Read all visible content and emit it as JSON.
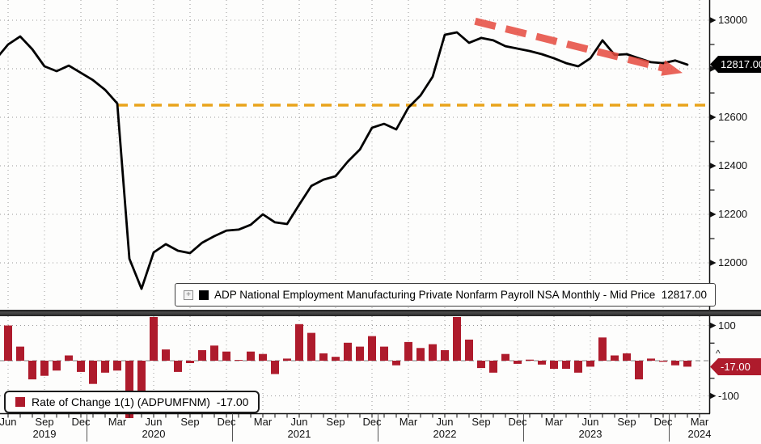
{
  "window": {
    "background": "#fdfdfc",
    "accent_red": "#ae1b2c",
    "accent_orange": "#e9a41b",
    "arrow_red": "#e64a3e"
  },
  "top_legend": {
    "expand_icon": "+",
    "swatch_color": "#000000",
    "label": "ADP National Employment Manufacturing Private Nonfarm Payroll NSA Monthly - Mid Price  12817.00"
  },
  "bottom_legend": {
    "swatch_color": "#ae1b2c",
    "label": "Rate of Change 1(1) (ADPUMFNM)  -17.00"
  },
  "badges": {
    "last_price": "12817.00",
    "last_price_bg": "#000000",
    "last_roc": "-17.00",
    "last_roc_bg": "#ae1b2c",
    "zero_caret": "^"
  },
  "price_axis": {
    "tick_labels": [
      "13000",
      "12600",
      "12400",
      "12200",
      "12000"
    ],
    "tick_values": [
      13000,
      12600,
      12400,
      12200,
      12000
    ],
    "grid_values": [
      13000,
      12800,
      12600,
      12400,
      12200,
      12000
    ],
    "minor_tick_values": [
      12900,
      12700,
      12500,
      12300,
      12100
    ]
  },
  "roc_axis": {
    "tick_labels": [
      "100",
      "-100"
    ],
    "tick_values": [
      100,
      -100
    ],
    "minor_tick_values": [
      50,
      -50
    ]
  },
  "x_axis": {
    "month_tick_labels": [
      "Jun",
      "Sep",
      "Dec",
      "Mar",
      "Jun",
      "Sep",
      "Dec",
      "Mar",
      "Jun",
      "Sep",
      "Dec",
      "Mar",
      "Jun",
      "Sep",
      "Dec",
      "Mar",
      "Jun",
      "Sep",
      "Dec",
      "Mar"
    ],
    "year_labels": [
      "2019",
      "2020",
      "2021",
      "2022",
      "2023",
      "2024"
    ]
  },
  "chart_data": [
    {
      "type": "line",
      "legend": "ADP National Employment Manufacturing Private Nonfarm Payroll NSA Monthly - Mid Price 12817.00",
      "line_color": "#000000",
      "x": [
        "2019-05",
        "2019-06",
        "2019-07",
        "2019-08",
        "2019-09",
        "2019-10",
        "2019-11",
        "2019-12",
        "2020-01",
        "2020-02",
        "2020-03",
        "2020-04",
        "2020-05",
        "2020-06",
        "2020-07",
        "2020-08",
        "2020-09",
        "2020-10",
        "2020-11",
        "2020-12",
        "2021-01",
        "2021-02",
        "2021-03",
        "2021-04",
        "2021-05",
        "2021-06",
        "2021-07",
        "2021-08",
        "2021-09",
        "2021-10",
        "2021-11",
        "2021-12",
        "2022-01",
        "2022-02",
        "2022-03",
        "2022-04",
        "2022-05",
        "2022-06",
        "2022-07",
        "2022-08",
        "2022-09",
        "2022-10",
        "2022-11",
        "2022-12",
        "2023-01",
        "2023-02",
        "2023-03",
        "2023-04",
        "2023-05",
        "2023-06",
        "2023-07",
        "2023-08",
        "2023-09",
        "2023-10",
        "2023-11",
        "2023-12",
        "2024-01",
        "2024-02"
      ],
      "values": [
        12840,
        12900,
        12933,
        12880,
        12810,
        12790,
        12813,
        12783,
        12753,
        12713,
        12657,
        12017,
        11893,
        12043,
        12077,
        12050,
        12040,
        12083,
        12110,
        12133,
        12137,
        12157,
        12200,
        12167,
        12160,
        12240,
        12317,
        12343,
        12357,
        12417,
        12467,
        12557,
        12573,
        12550,
        12640,
        12690,
        12767,
        12940,
        12950,
        12907,
        12927,
        12917,
        12893,
        12883,
        12873,
        12860,
        12843,
        12823,
        12810,
        12843,
        12917,
        12857,
        12860,
        12843,
        12827,
        12823,
        12834,
        12817
      ],
      "last_value": 12817.0,
      "ylim": [
        11807,
        13083
      ],
      "grid": "dotted",
      "reference_line": {
        "value": 12650,
        "from_month_index": 10,
        "color": "#e9a41b",
        "style": "dashed"
      },
      "annotation_arrow": {
        "from_month_index": 39.5,
        "from_value": 12996,
        "to_month_index": 56.6,
        "to_value": 12783,
        "color": "#e64a3e",
        "style": "thick-dashed",
        "direction": "down-right"
      }
    },
    {
      "type": "bar",
      "legend": "Rate of Change 1(1) (ADPUMFNM) -17.00",
      "bar_color": "#ae1b2c",
      "first_month": "2019-06",
      "x": [
        "2019-06",
        "2019-07",
        "2019-08",
        "2019-09",
        "2019-10",
        "2019-11",
        "2019-12",
        "2020-01",
        "2020-02",
        "2020-03",
        "2020-04",
        "2020-05",
        "2020-06",
        "2020-07",
        "2020-08",
        "2020-09",
        "2020-10",
        "2020-11",
        "2020-12",
        "2021-01",
        "2021-02",
        "2021-03",
        "2021-04",
        "2021-05",
        "2021-06",
        "2021-07",
        "2021-08",
        "2021-09",
        "2021-10",
        "2021-11",
        "2021-12",
        "2022-01",
        "2022-02",
        "2022-03",
        "2022-04",
        "2022-05",
        "2022-06",
        "2022-07",
        "2022-08",
        "2022-09",
        "2022-10",
        "2022-11",
        "2022-12",
        "2023-01",
        "2023-02",
        "2023-03",
        "2023-04",
        "2023-05",
        "2023-06",
        "2023-07",
        "2023-08",
        "2023-09",
        "2023-10",
        "2023-11",
        "2023-12",
        "2024-01",
        "2024-02"
      ],
      "values": [
        100,
        40,
        -53,
        -43,
        -28,
        15,
        -32,
        -66,
        -34,
        -28,
        -640,
        -124,
        150,
        32,
        -32,
        -7,
        30,
        43,
        26,
        2,
        26,
        19,
        -38,
        6,
        104,
        79,
        21,
        11,
        51,
        40,
        70,
        40,
        -13,
        53,
        36,
        47,
        30,
        173,
        60,
        -21,
        -34,
        19,
        -9,
        3,
        -11,
        -23,
        -23,
        -34,
        -17,
        66,
        15,
        21,
        -53,
        6,
        -3,
        -13,
        -17
      ],
      "last_value": -17.0,
      "ylim": [
        -150,
        124
      ],
      "zero_line": "dashed",
      "note": "values beyond ylim are clipped at panel edges"
    }
  ]
}
